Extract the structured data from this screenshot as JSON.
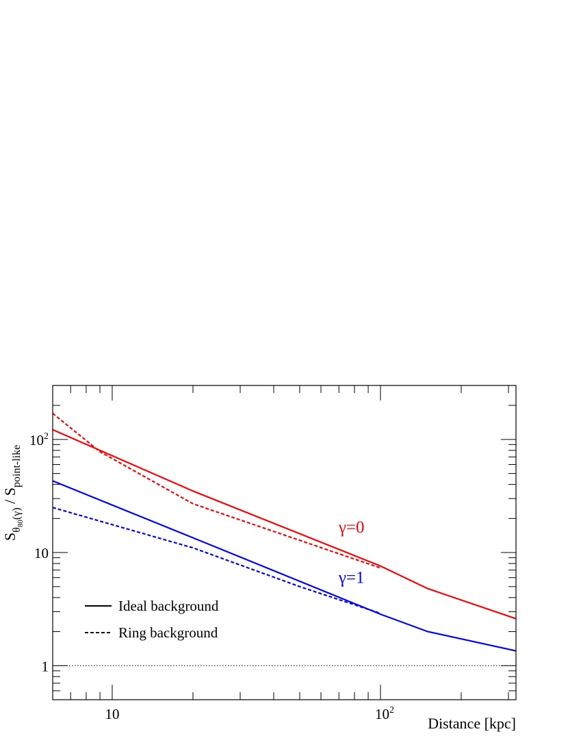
{
  "chart_data": {
    "type": "line",
    "xlabel": "Distance [kpc]",
    "ylabel": {
      "main": "S",
      "sub": "θ",
      "subsub": "80",
      "paren": "(γ)",
      "sep": " / S",
      "denom_sub": "point-like"
    },
    "x_scale": "log",
    "y_scale": "log",
    "xlim": [
      6,
      320
    ],
    "ylim": [
      0.5,
      300
    ],
    "x_tick_labels": [
      {
        "value": 10,
        "base": "10",
        "exp": ""
      },
      {
        "value": 100,
        "base": "10",
        "exp": "2"
      }
    ],
    "y_tick_labels": [
      {
        "value": 1,
        "base": "1",
        "exp": ""
      },
      {
        "value": 10,
        "base": "10",
        "exp": ""
      },
      {
        "value": 100,
        "base": "10",
        "exp": "2"
      }
    ],
    "reference_line": {
      "y": 1,
      "style": "dotted",
      "color": "#000000"
    },
    "series": [
      {
        "group": "γ=0",
        "style": "solid",
        "color": "#ff0000",
        "points": [
          [
            6,
            122
          ],
          [
            20,
            35
          ],
          [
            100,
            7.6
          ],
          [
            150,
            4.8
          ],
          [
            320,
            2.6
          ]
        ]
      },
      {
        "group": "γ=0",
        "style": "dashed",
        "color": "#ff0000",
        "points": [
          [
            6,
            170
          ],
          [
            9,
            78
          ],
          [
            20,
            27
          ],
          [
            100,
            7.3
          ]
        ]
      },
      {
        "group": "γ=1",
        "style": "solid",
        "color": "#0000ff",
        "points": [
          [
            6,
            43
          ],
          [
            20,
            13.5
          ],
          [
            100,
            2.85
          ],
          [
            150,
            2.0
          ],
          [
            320,
            1.35
          ]
        ]
      },
      {
        "group": "γ=1",
        "style": "dashed",
        "color": "#0000ff",
        "points": [
          [
            6,
            25
          ],
          [
            20,
            11
          ],
          [
            50,
            5.0
          ],
          [
            100,
            2.9
          ]
        ]
      }
    ],
    "annotations": [
      {
        "text": "γ=0",
        "color": "#ff0000",
        "x": 78,
        "y": 15
      },
      {
        "text": "γ=1",
        "color": "#0000ff",
        "x": 78,
        "y": 5.4
      }
    ],
    "legend": {
      "position": "bottom-left",
      "entries": [
        {
          "label": "Ideal background",
          "style": "solid"
        },
        {
          "label": "Ring background",
          "style": "dashed"
        }
      ]
    }
  }
}
